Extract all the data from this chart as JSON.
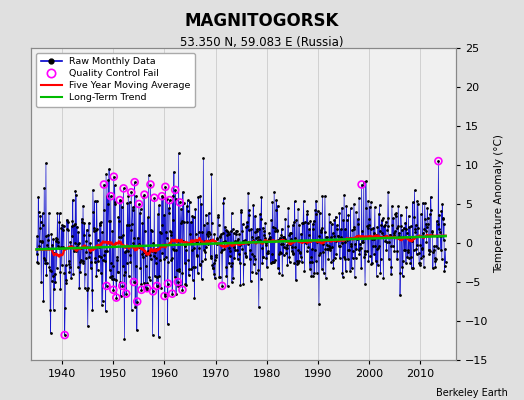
{
  "title": "MAGNITOGORSK",
  "subtitle": "53.350 N, 59.083 E (Russia)",
  "ylabel_right": "Temperature Anomaly (°C)",
  "credit": "Berkeley Earth",
  "xlim": [
    1934,
    2017
  ],
  "ylim": [
    -15,
    25
  ],
  "yticks": [
    -15,
    -10,
    -5,
    0,
    5,
    10,
    15,
    20,
    25
  ],
  "xticks": [
    1940,
    1950,
    1960,
    1970,
    1980,
    1990,
    2000,
    2010
  ],
  "bg_color": "#e0e0e0",
  "plot_bg_color": "#f0f0f0",
  "raw_color": "#0000cc",
  "raw_dot_color": "#000000",
  "qc_color": "#ff00ff",
  "moving_avg_color": "#ff0000",
  "trend_color": "#00bb00",
  "seed": 12345,
  "years_start": 1935,
  "years_end": 2015,
  "noise_std": 2.8,
  "trend_slope": 0.018
}
